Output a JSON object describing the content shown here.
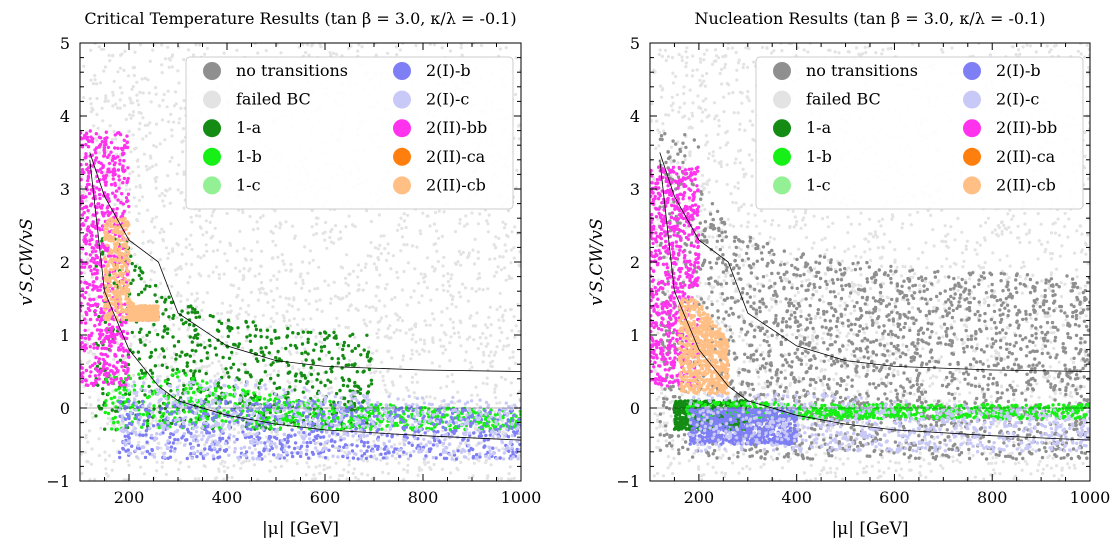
{
  "legend": {
    "placement": "top-right",
    "items": [
      {
        "label": "no transitions",
        "color": "#8f8f8f"
      },
      {
        "label": "failed BC",
        "color": "#e3e3e3"
      },
      {
        "label": "1-a",
        "color": "#148c14"
      },
      {
        "label": "1-b",
        "color": "#16f016"
      },
      {
        "label": "1-c",
        "color": "#94f094"
      },
      {
        "label": "2(I)-b",
        "color": "#7f7ff5"
      },
      {
        "label": "2(I)-c",
        "color": "#c9c9f8"
      },
      {
        "label": "2(II)-bb",
        "color": "#ff33ee"
      },
      {
        "label": "2(II)-ca",
        "color": "#ff7f0e"
      },
      {
        "label": "2(II)-cb",
        "color": "#ffbf85"
      }
    ]
  },
  "chart_data": [
    {
      "type": "scatter",
      "title": "Critical Temperature Results (tan β = 3.0, κ/λ = -0.1)",
      "xlabel": "|μ| [GeV]",
      "ylabel": "v′S,CW/vS",
      "xlim": [
        100,
        1000
      ],
      "ylim": [
        -1,
        5
      ],
      "xticks": [
        "200",
        "400",
        "600",
        "800",
        "1000"
      ],
      "yticks": [
        "−1",
        "0",
        "1",
        "2",
        "3",
        "4",
        "5"
      ],
      "grid": false,
      "legend_placement": "top-right",
      "regions": [
        {
          "series": "failed BC",
          "description": "fills entire plane",
          "x": [
            100,
            1000
          ],
          "y": [
            -1,
            5
          ]
        },
        {
          "series": "1-a",
          "x": [
            130,
            700
          ],
          "y": [
            -0.3,
            2.4
          ]
        },
        {
          "series": "1-b",
          "x": [
            150,
            1000
          ],
          "y": [
            -0.3,
            0.5
          ]
        },
        {
          "series": "2(I)-b",
          "x": [
            180,
            1000
          ],
          "y": [
            -0.7,
            0.1
          ]
        },
        {
          "series": "2(I)-c",
          "x": [
            180,
            1000
          ],
          "y": [
            -0.7,
            0.4
          ]
        },
        {
          "series": "2(II)-bb",
          "x": [
            100,
            200
          ],
          "y": [
            0.3,
            3.8
          ]
        },
        {
          "series": "2(II)-cb",
          "x": [
            150,
            260
          ],
          "y": [
            1.2,
            2.6
          ]
        }
      ],
      "boundary_lines": [
        {
          "x": [
            120,
            150,
            200,
            260,
            300,
            400,
            500,
            600,
            800,
            1000
          ],
          "y": [
            3.5,
            2.9,
            2.3,
            2.0,
            1.3,
            0.85,
            0.65,
            0.57,
            0.52,
            0.5
          ]
        },
        {
          "x": [
            120,
            150,
            200,
            260,
            300,
            400,
            500,
            600,
            800,
            1000
          ],
          "y": [
            3.4,
            1.6,
            0.8,
            0.3,
            0.1,
            -0.1,
            -0.22,
            -0.3,
            -0.38,
            -0.44
          ]
        }
      ]
    },
    {
      "type": "scatter",
      "title": "Nucleation Results (tan β = 3.0, κ/λ = -0.1)",
      "xlabel": "|μ| [GeV]",
      "ylabel": "v′S,CW/vS",
      "xlim": [
        100,
        1000
      ],
      "ylim": [
        -1,
        5
      ],
      "xticks": [
        "200",
        "400",
        "600",
        "800",
        "1000"
      ],
      "yticks": [
        "−1",
        "0",
        "1",
        "2",
        "3",
        "4",
        "5"
      ],
      "grid": false,
      "legend_placement": "top-right",
      "regions": [
        {
          "series": "failed BC",
          "description": "fills entire plane",
          "x": [
            100,
            1000
          ],
          "y": [
            -1,
            5
          ]
        },
        {
          "series": "no transitions",
          "x": [
            120,
            1000
          ],
          "y": [
            -0.7,
            3.8
          ]
        },
        {
          "series": "1-a",
          "x": [
            150,
            300
          ],
          "y": [
            -0.3,
            0.1
          ]
        },
        {
          "series": "1-b",
          "x": [
            170,
            1000
          ],
          "y": [
            -0.15,
            0.08
          ]
        },
        {
          "series": "2(I)-b",
          "x": [
            180,
            400
          ],
          "y": [
            -0.5,
            0.0
          ]
        },
        {
          "series": "2(I)-c",
          "x": [
            180,
            1000
          ],
          "y": [
            -0.6,
            0.2
          ]
        },
        {
          "series": "2(II)-bb",
          "x": [
            100,
            200
          ],
          "y": [
            0.3,
            3.3
          ]
        },
        {
          "series": "2(II)-cb",
          "x": [
            160,
            260
          ],
          "y": [
            0.2,
            1.5
          ]
        }
      ],
      "boundary_lines": [
        {
          "x": [
            120,
            150,
            200,
            260,
            300,
            400,
            500,
            600,
            800,
            1000
          ],
          "y": [
            3.5,
            2.9,
            2.3,
            2.0,
            1.3,
            0.85,
            0.65,
            0.57,
            0.52,
            0.5
          ]
        },
        {
          "x": [
            120,
            150,
            200,
            260,
            300,
            400,
            500,
            600,
            800,
            1000
          ],
          "y": [
            3.4,
            1.6,
            0.8,
            0.3,
            0.1,
            -0.1,
            -0.22,
            -0.3,
            -0.38,
            -0.44
          ]
        }
      ]
    }
  ]
}
